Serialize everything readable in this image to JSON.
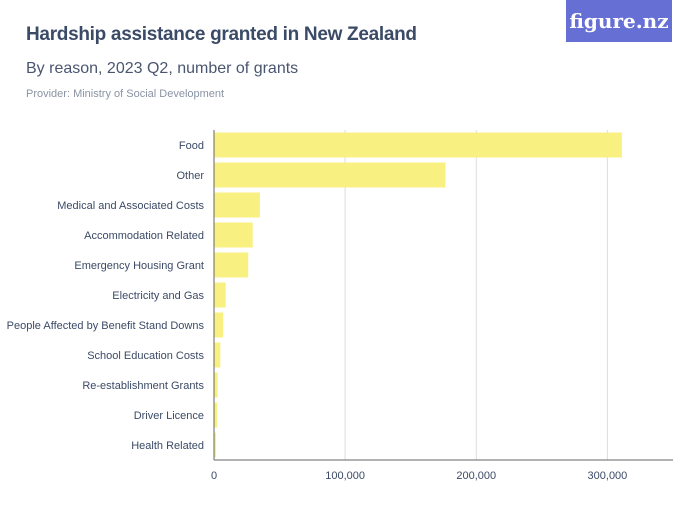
{
  "header": {
    "title": "Hardship assistance granted in New Zealand",
    "subtitle": "By reason, 2023 Q2, number of grants",
    "provider": "Provider: Ministry of Social Development",
    "logo_text": "figure.nz"
  },
  "colors": {
    "bar": "#f8f080",
    "grid": "#dddddd",
    "axis": "#666666",
    "logo_bg": "#6670d4"
  },
  "chart_data": {
    "type": "bar",
    "orientation": "horizontal",
    "categories": [
      "Food",
      "Other",
      "Medical and Associated Costs",
      "Accommodation Related",
      "Emergency Housing Grant",
      "Electricity and Gas",
      "People Affected by Benefit Stand Downs",
      "School Education Costs",
      "Re-establishment Grants",
      "Driver Licence",
      "Health Related"
    ],
    "values": [
      311000,
      176500,
      35000,
      29500,
      26100,
      8900,
      6900,
      4800,
      2800,
      2500,
      1500
    ],
    "xlim": [
      0,
      350000
    ],
    "ticks": [
      0,
      100000,
      200000,
      300000
    ],
    "tick_labels": [
      "0",
      "100,000",
      "200,000",
      "300,000"
    ],
    "grid": true
  }
}
